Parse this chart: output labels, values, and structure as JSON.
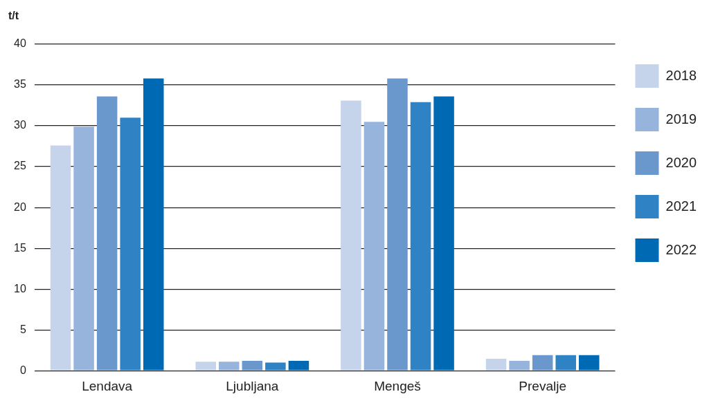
{
  "chart_data": {
    "type": "bar",
    "ylabel": "t/t",
    "categories": [
      "Lendava",
      "Ljubljana",
      "Mengeš",
      "Prevalje"
    ],
    "series": [
      {
        "name": "2018",
        "color": "#c5d3eb",
        "values": [
          27.6,
          1.1,
          33.1,
          1.45
        ]
      },
      {
        "name": "2019",
        "color": "#97b4dc",
        "values": [
          29.9,
          1.1,
          30.5,
          1.2
        ]
      },
      {
        "name": "2020",
        "color": "#6a97cc",
        "values": [
          33.6,
          1.2,
          35.8,
          1.9
        ]
      },
      {
        "name": "2021",
        "color": "#2f82c3",
        "values": [
          31.0,
          1.0,
          32.9,
          1.9
        ]
      },
      {
        "name": "2022",
        "color": "#0069b4",
        "values": [
          35.8,
          1.2,
          33.6,
          1.9
        ]
      }
    ],
    "ylim": [
      0,
      40
    ],
    "yticks": [
      0,
      5,
      10,
      15,
      20,
      25,
      30,
      35,
      40
    ],
    "grid": "y",
    "legend": "right"
  }
}
